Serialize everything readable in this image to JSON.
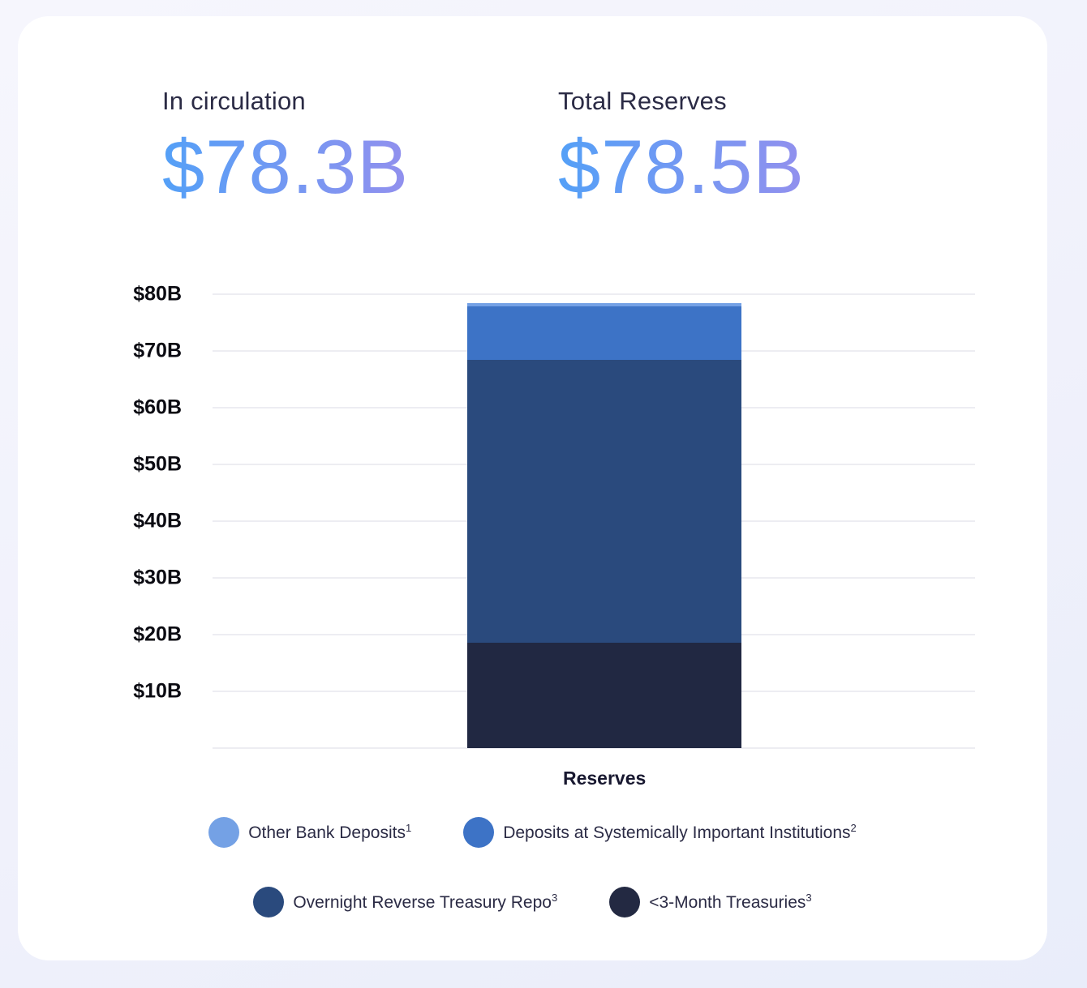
{
  "page": {
    "background_color": "#f1f2fb",
    "card_background_color": "#ffffff"
  },
  "header": {
    "stats": [
      {
        "label": "In circulation",
        "value": "$78.3B"
      },
      {
        "label": "Total Reserves",
        "value": "$78.5B"
      }
    ],
    "value_gradient_start": "#54a0f7",
    "value_gradient_end": "#9290ee"
  },
  "chart_data": {
    "type": "bar",
    "stacked": true,
    "title": "",
    "categories": [
      "Reserves"
    ],
    "series": [
      {
        "name": "<3-Month Treasuries",
        "footnote": "3",
        "values": [
          18.6
        ],
        "color": "#212842"
      },
      {
        "name": "Overnight Reverse Treasury Repo",
        "footnote": "3",
        "values": [
          49.8
        ],
        "color": "#2a4a7d"
      },
      {
        "name": "Deposits at Systemically Important Institutions",
        "footnote": "2",
        "values": [
          9.5
        ],
        "color": "#3d73c6"
      },
      {
        "name": "Other Bank Deposits",
        "footnote": "1",
        "values": [
          0.6
        ],
        "color": "#74a1e5"
      }
    ],
    "total": 78.5,
    "xlabel": "Reserves",
    "ylabel": "",
    "ylim": [
      0,
      80
    ],
    "yticks": [
      {
        "value": 80,
        "label": "$80B"
      },
      {
        "value": 70,
        "label": "$70B"
      },
      {
        "value": 60,
        "label": "$60B"
      },
      {
        "value": 50,
        "label": "$50B"
      },
      {
        "value": 40,
        "label": "$40B"
      },
      {
        "value": 30,
        "label": "$30B"
      },
      {
        "value": 20,
        "label": "$20B"
      },
      {
        "value": 10,
        "label": "$10B"
      }
    ],
    "grid": true,
    "gridline_color": "#ededf2",
    "legend_position": "bottom"
  },
  "legend": {
    "rows": [
      [
        {
          "label": "Other Bank Deposits",
          "sup": "1",
          "color": "#74a1e5"
        },
        {
          "label": "Deposits at Systemically Important Institutions",
          "sup": "2",
          "color": "#3d73c6"
        }
      ],
      [
        {
          "label": "Overnight Reverse Treasury Repo",
          "sup": "3",
          "color": "#2a4a7d"
        },
        {
          "label": "<3-Month Treasuries",
          "sup": "3",
          "color": "#232942"
        }
      ]
    ]
  }
}
